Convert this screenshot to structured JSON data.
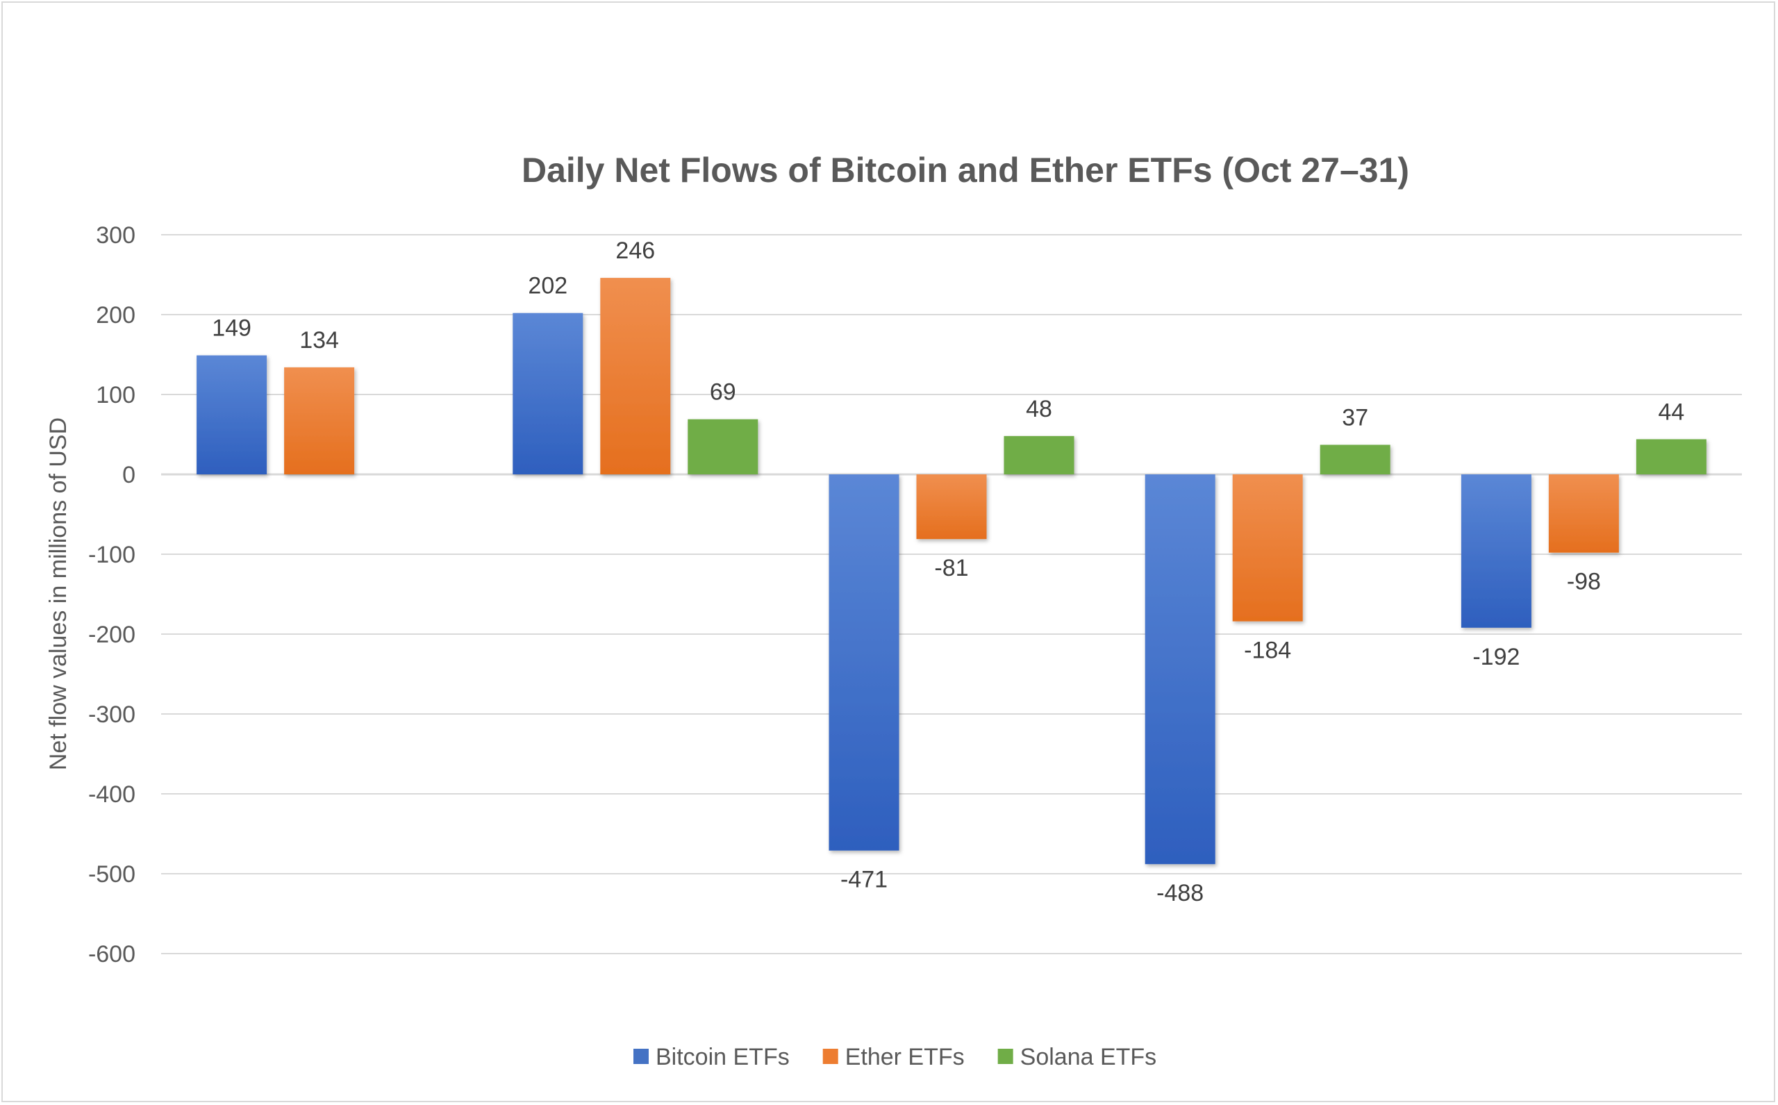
{
  "chart_data": {
    "type": "bar",
    "title": "Daily Net Flows of Bitcoin and Ether ETFs (Oct 27–31)",
    "xlabel": "",
    "ylabel": "Net flow values in millions of USD",
    "ylim": [
      -600,
      300
    ],
    "yticks": [
      300,
      200,
      100,
      0,
      -100,
      -200,
      -300,
      -400,
      -500,
      -600
    ],
    "grid": true,
    "legend_position": "bottom",
    "categories": [
      "",
      "",
      "",
      "",
      ""
    ],
    "series": [
      {
        "name": "Bitcoin ETFs",
        "color": "#4472c4",
        "values": [
          149,
          202,
          -471,
          -488,
          -192
        ]
      },
      {
        "name": "Ether ETFs",
        "color": "#ed7d31",
        "values": [
          134,
          246,
          -81,
          -184,
          -98
        ]
      },
      {
        "name": "Solana ETFs",
        "color": "#70ad47",
        "values": [
          null,
          69,
          48,
          37,
          44
        ]
      }
    ]
  }
}
